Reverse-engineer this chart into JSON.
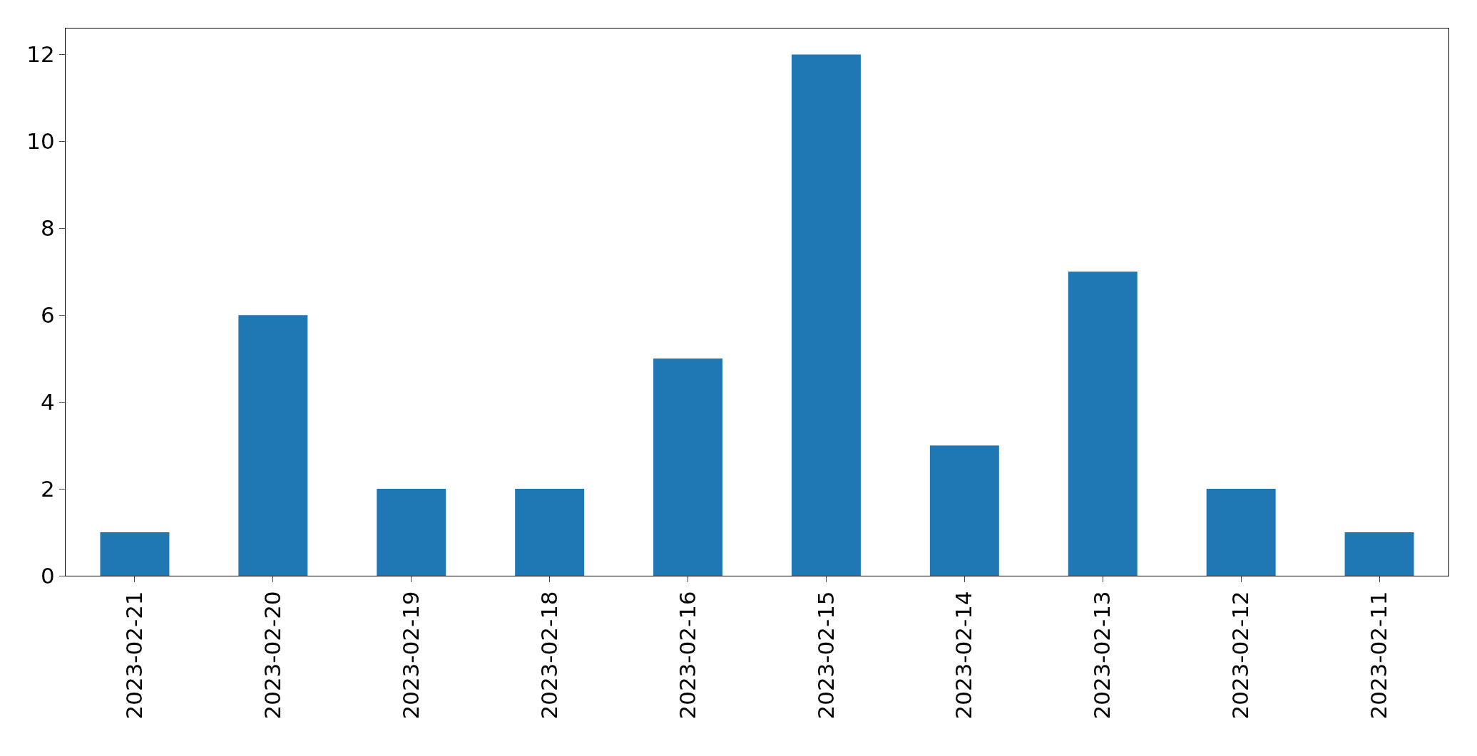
{
  "chart_data": {
    "type": "bar",
    "categories": [
      "2023-02-21",
      "2023-02-20",
      "2023-02-19",
      "2023-02-18",
      "2023-02-16",
      "2023-02-15",
      "2023-02-14",
      "2023-02-13",
      "2023-02-12",
      "2023-02-11"
    ],
    "values": [
      1,
      6,
      2,
      2,
      5,
      12,
      3,
      7,
      2,
      1
    ],
    "color": "#1f77b4",
    "ylim": [
      0,
      12.6
    ],
    "yticks": [
      0,
      2,
      4,
      6,
      8,
      10,
      12
    ],
    "grid": false,
    "legend": false
  }
}
